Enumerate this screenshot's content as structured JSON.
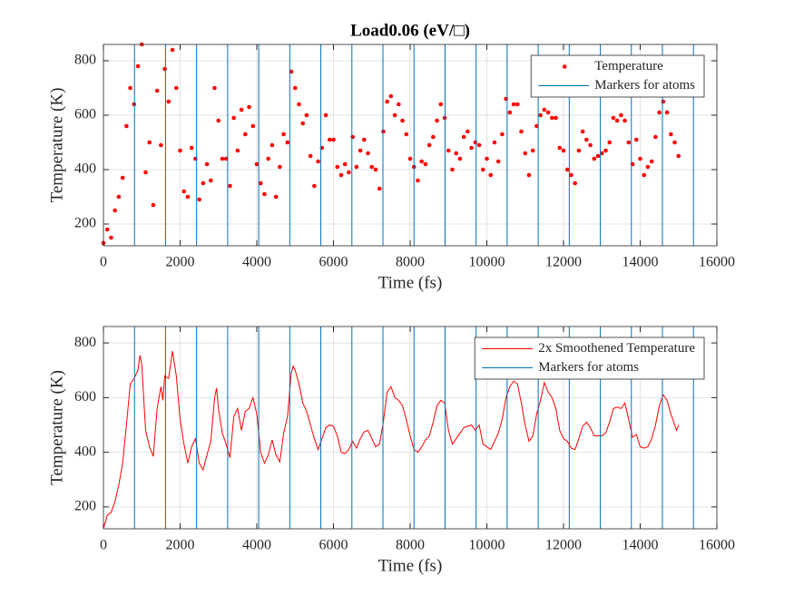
{
  "chart_data": [
    {
      "type": "scatter",
      "title": "Load0.06 (eV/□)",
      "xlabel": "Time (fs)",
      "ylabel": "Temperature (K)",
      "xlim": [
        0,
        16000
      ],
      "ylim": [
        120,
        860
      ],
      "xticks": [
        0,
        2000,
        4000,
        6000,
        8000,
        10000,
        12000,
        14000,
        16000
      ],
      "yticks": [
        200,
        400,
        600,
        800
      ],
      "grid": true,
      "legend": "northeast",
      "series": [
        {
          "name": "Temperature",
          "color": "#ff0000",
          "type": "scatter",
          "x": [
            0,
            100,
            200,
            300,
            400,
            500,
            600,
            700,
            800,
            900,
            1000,
            1100,
            1200,
            1300,
            1400,
            1500,
            1600,
            1700,
            1800,
            1900,
            2000,
            2100,
            2200,
            2300,
            2400,
            2500,
            2600,
            2700,
            2800,
            2900,
            3000,
            3100,
            3200,
            3300,
            3400,
            3500,
            3600,
            3700,
            3800,
            3900,
            4000,
            4100,
            4200,
            4300,
            4400,
            4500,
            4600,
            4700,
            4800,
            4900,
            5000,
            5100,
            5200,
            5300,
            5400,
            5500,
            5600,
            5700,
            5800,
            5900,
            6000,
            6100,
            6200,
            6300,
            6400,
            6500,
            6600,
            6700,
            6800,
            6900,
            7000,
            7100,
            7200,
            7300,
            7400,
            7500,
            7600,
            7700,
            7800,
            7900,
            8000,
            8100,
            8200,
            8300,
            8400,
            8500,
            8600,
            8700,
            8800,
            8900,
            9000,
            9100,
            9200,
            9300,
            9400,
            9500,
            9600,
            9700,
            9800,
            9900,
            10000,
            10100,
            10200,
            10300,
            10400,
            10500,
            10600,
            10700,
            10800,
            10900,
            11000,
            11100,
            11200,
            11300,
            11400,
            11500,
            11600,
            11700,
            11800,
            11900,
            12000,
            12100,
            12200,
            12300,
            12400,
            12500,
            12600,
            12700,
            12800,
            12900,
            13000,
            13100,
            13200,
            13300,
            13400,
            13500,
            13600,
            13700,
            13800,
            13900,
            14000,
            14100,
            14200,
            14300,
            14400,
            14500,
            14600,
            14700,
            14800,
            14900,
            15000
          ],
          "values": [
            130,
            180,
            150,
            250,
            300,
            370,
            560,
            700,
            640,
            780,
            860,
            390,
            500,
            270,
            690,
            490,
            770,
            650,
            840,
            700,
            470,
            320,
            300,
            480,
            440,
            290,
            350,
            420,
            360,
            700,
            580,
            440,
            440,
            340,
            590,
            470,
            620,
            530,
            630,
            560,
            420,
            350,
            310,
            440,
            490,
            300,
            410,
            530,
            500,
            760,
            700,
            640,
            570,
            600,
            450,
            340,
            430,
            480,
            600,
            510,
            510,
            410,
            380,
            420,
            390,
            520,
            410,
            470,
            510,
            460,
            410,
            400,
            330,
            540,
            650,
            670,
            600,
            640,
            580,
            530,
            440,
            410,
            360,
            430,
            420,
            490,
            520,
            580,
            640,
            590,
            470,
            400,
            460,
            440,
            520,
            540,
            480,
            500,
            490,
            400,
            440,
            380,
            500,
            430,
            530,
            660,
            610,
            640,
            640,
            540,
            460,
            380,
            470,
            560,
            600,
            620,
            610,
            590,
            590,
            480,
            470,
            400,
            380,
            350,
            470,
            540,
            510,
            490,
            440,
            450,
            460,
            470,
            500,
            590,
            580,
            600,
            580,
            500,
            420,
            510,
            440,
            380,
            410,
            430,
            520,
            610,
            650,
            610,
            530,
            500,
            450
          ]
        },
        {
          "name": "Markers for atoms",
          "color": "#0072bd",
          "type": "vline",
          "x": [
            810,
            1620,
            2430,
            3240,
            4050,
            4860,
            5670,
            6480,
            7290,
            8100,
            8910,
            9720,
            10530,
            11340,
            12150,
            12960,
            13770,
            14580,
            15390
          ]
        }
      ]
    },
    {
      "type": "line",
      "xlabel": "Time (fs)",
      "ylabel": "Temperature (K)",
      "xlim": [
        0,
        16000
      ],
      "ylim": [
        120,
        860
      ],
      "xticks": [
        0,
        2000,
        4000,
        6000,
        8000,
        10000,
        12000,
        14000,
        16000
      ],
      "yticks": [
        200,
        400,
        600,
        800
      ],
      "grid": true,
      "legend": "northeast",
      "series": [
        {
          "name": "2x Smoothened Temperature",
          "color": "#ff0000",
          "type": "line",
          "x": [
            0,
            100,
            200,
            300,
            400,
            500,
            600,
            700,
            800,
            900,
            950,
            1000,
            1100,
            1200,
            1300,
            1400,
            1500,
            1550,
            1600,
            1700,
            1800,
            1900,
            2000,
            2100,
            2200,
            2300,
            2400,
            2500,
            2600,
            2700,
            2800,
            2900,
            2950,
            3000,
            3100,
            3200,
            3300,
            3400,
            3500,
            3600,
            3700,
            3800,
            3900,
            4000,
            4100,
            4200,
            4300,
            4400,
            4500,
            4600,
            4700,
            4800,
            4900,
            4950,
            5000,
            5100,
            5200,
            5300,
            5400,
            5500,
            5600,
            5700,
            5800,
            5900,
            6000,
            6100,
            6200,
            6300,
            6400,
            6500,
            6600,
            6700,
            6800,
            6900,
            7000,
            7100,
            7200,
            7300,
            7400,
            7500,
            7600,
            7700,
            7800,
            7900,
            8000,
            8100,
            8200,
            8300,
            8400,
            8500,
            8600,
            8700,
            8800,
            8900,
            9000,
            9100,
            9200,
            9300,
            9400,
            9500,
            9600,
            9700,
            9800,
            9900,
            10000,
            10100,
            10200,
            10300,
            10400,
            10500,
            10600,
            10700,
            10800,
            10900,
            11000,
            11100,
            11200,
            11300,
            11400,
            11500,
            11600,
            11700,
            11800,
            11900,
            12000,
            12100,
            12200,
            12300,
            12400,
            12500,
            12600,
            12700,
            12800,
            12900,
            13000,
            13100,
            13200,
            13300,
            13400,
            13500,
            13600,
            13700,
            13800,
            13900,
            14000,
            14100,
            14200,
            14300,
            14400,
            14500,
            14600,
            14700,
            14800,
            14900,
            14950,
            15000
          ],
          "values": [
            120,
            170,
            180,
            220,
            280,
            360,
            500,
            650,
            670,
            700,
            755,
            720,
            480,
            420,
            385,
            560,
            640,
            590,
            680,
            670,
            770,
            680,
            520,
            430,
            360,
            420,
            450,
            360,
            335,
            390,
            440,
            600,
            635,
            560,
            470,
            430,
            380,
            530,
            560,
            480,
            550,
            560,
            600,
            540,
            400,
            360,
            390,
            445,
            390,
            365,
            470,
            530,
            690,
            715,
            700,
            650,
            580,
            550,
            500,
            450,
            410,
            450,
            490,
            500,
            495,
            460,
            400,
            395,
            410,
            440,
            415,
            450,
            475,
            480,
            450,
            420,
            430,
            510,
            620,
            640,
            600,
            590,
            570,
            520,
            460,
            410,
            400,
            420,
            445,
            460,
            510,
            570,
            590,
            580,
            480,
            430,
            450,
            470,
            490,
            495,
            500,
            480,
            500,
            430,
            420,
            410,
            440,
            470,
            520,
            600,
            640,
            660,
            650,
            580,
            500,
            440,
            460,
            540,
            590,
            655,
            620,
            600,
            560,
            480,
            450,
            440,
            415,
            410,
            450,
            495,
            510,
            490,
            460,
            460,
            460,
            470,
            510,
            560,
            565,
            560,
            580,
            520,
            455,
            465,
            420,
            415,
            420,
            450,
            500,
            570,
            610,
            590,
            540,
            500,
            480,
            500
          ]
        },
        {
          "name": "Markers for atoms",
          "color": "#0072bd",
          "type": "vline",
          "x": [
            810,
            1620,
            2430,
            3240,
            4050,
            4860,
            5670,
            6480,
            7290,
            8100,
            8910,
            9720,
            10530,
            11340,
            12150,
            12960,
            13770,
            14580,
            15390
          ]
        }
      ]
    }
  ]
}
